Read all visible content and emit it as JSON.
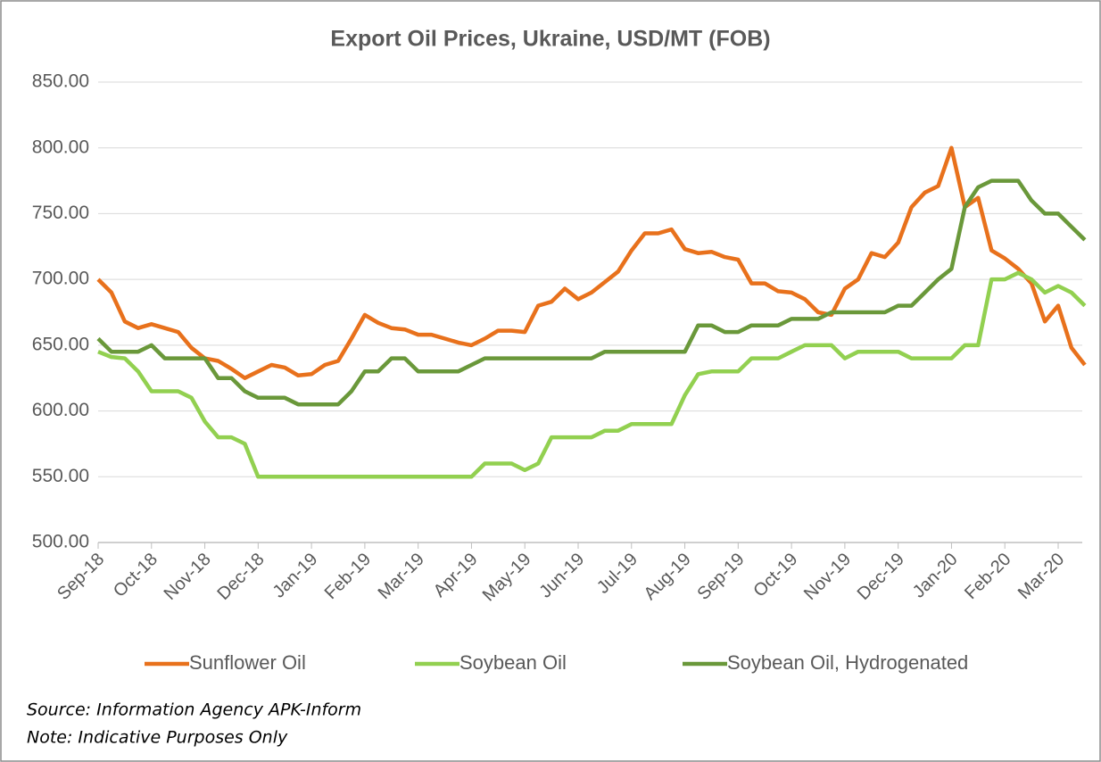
{
  "chart_data": {
    "type": "line",
    "title": "Export Oil Prices, Ukraine, USD/MT (FOB)",
    "categories": [
      "Sep-18",
      null,
      null,
      null,
      "Oct-18",
      null,
      null,
      null,
      "Nov-18",
      null,
      null,
      null,
      "Dec-18",
      null,
      null,
      null,
      "Jan-19",
      null,
      null,
      null,
      "Feb-19",
      null,
      null,
      null,
      "Mar-19",
      null,
      null,
      null,
      "Apr-19",
      null,
      null,
      null,
      "May-19",
      null,
      null,
      null,
      "Jun-19",
      null,
      null,
      null,
      "Jul-19",
      null,
      null,
      null,
      "Aug-19",
      null,
      null,
      null,
      "Sep-19",
      null,
      null,
      null,
      "Oct-19",
      null,
      null,
      null,
      "Nov-19",
      null,
      null,
      null,
      "Dec-19",
      null,
      null,
      null,
      "Jan-20",
      null,
      null,
      null,
      "Feb-20",
      null,
      null,
      null,
      "Mar-20",
      null,
      null
    ],
    "series": [
      {
        "name": "Sunflower Oil",
        "color": "#e8711c",
        "values": [
          700,
          690,
          668,
          663,
          666,
          663,
          660,
          648,
          640,
          638,
          632,
          625,
          630,
          635,
          633,
          627,
          628,
          635,
          638,
          655,
          673,
          667,
          663,
          662,
          658,
          658,
          655,
          652,
          650,
          655,
          661,
          661,
          660,
          680,
          683,
          693,
          685,
          690,
          698,
          706,
          722,
          735,
          735,
          738,
          723,
          720,
          721,
          717,
          715,
          697,
          697,
          691,
          690,
          685,
          675,
          673,
          693,
          700,
          720,
          717,
          728,
          755,
          766,
          771,
          800,
          755,
          762,
          722,
          716,
          708,
          697,
          668,
          680,
          648,
          635
        ]
      },
      {
        "name": "Soybean Oil",
        "color": "#92d050",
        "values": [
          645,
          641,
          640,
          630,
          615,
          615,
          615,
          610,
          592,
          580,
          580,
          575,
          550,
          550,
          550,
          550,
          550,
          550,
          550,
          550,
          550,
          550,
          550,
          550,
          550,
          550,
          550,
          550,
          550,
          560,
          560,
          560,
          555,
          560,
          580,
          580,
          580,
          580,
          585,
          585,
          590,
          590,
          590,
          590,
          612,
          628,
          630,
          630,
          630,
          640,
          640,
          640,
          645,
          650,
          650,
          650,
          640,
          645,
          645,
          645,
          645,
          640,
          640,
          640,
          640,
          650,
          650,
          700,
          700,
          705,
          700,
          690,
          695,
          690,
          680
        ]
      },
      {
        "name": "Soybean Oil, Hydrogenated",
        "color": "#6a983a",
        "values": [
          655,
          645,
          645,
          645,
          650,
          640,
          640,
          640,
          640,
          625,
          625,
          615,
          610,
          610,
          610,
          605,
          605,
          605,
          605,
          615,
          630,
          630,
          640,
          640,
          630,
          630,
          630,
          630,
          635,
          640,
          640,
          640,
          640,
          640,
          640,
          640,
          640,
          640,
          645,
          645,
          645,
          645,
          645,
          645,
          645,
          665,
          665,
          660,
          660,
          665,
          665,
          665,
          670,
          670,
          670,
          675,
          675,
          675,
          675,
          675,
          680,
          680,
          690,
          700,
          708,
          755,
          770,
          775,
          775,
          775,
          760,
          750,
          750,
          740,
          730
        ]
      }
    ],
    "ylim": [
      500,
      850
    ],
    "yticks": [
      {
        "value": 500,
        "label": "500.00"
      },
      {
        "value": 550,
        "label": "550.00"
      },
      {
        "value": 600,
        "label": "600.00"
      },
      {
        "value": 650,
        "label": "650.00"
      },
      {
        "value": 700,
        "label": "700.00"
      },
      {
        "value": 750,
        "label": "750.00"
      },
      {
        "value": 800,
        "label": "800.00"
      },
      {
        "value": 850,
        "label": "850.00"
      }
    ],
    "grid": true,
    "legend": "bottom",
    "source": "Source: Information Agency APK-Inform",
    "note": "Note: Indicative Purposes Only"
  }
}
